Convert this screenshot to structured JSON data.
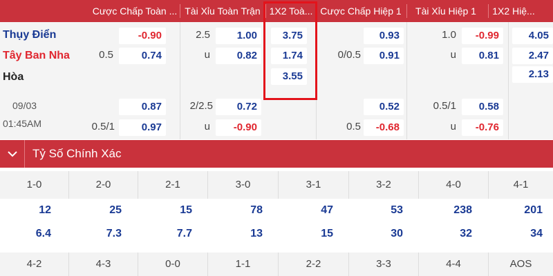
{
  "columns": [
    {
      "label": "Cược Chấp Toàn ..."
    },
    {
      "label": "Tài Xỉu Toàn Trận"
    },
    {
      "label": "1X2 Toà..."
    },
    {
      "label": "Cược Chấp Hiệp 1"
    },
    {
      "label": "Tài Xỉu Hiệp 1"
    },
    {
      "label": "1X2 Hiệ..."
    }
  ],
  "match": {
    "home": "Thụy Điển",
    "away": "Tây Ban Nha",
    "draw": "Hòa",
    "date": "09/03",
    "time": "01:45AM"
  },
  "main_odds": {
    "hc_line": "0.5",
    "hc_home": "-0.90",
    "hc_away": "0.74",
    "ou_line": "2.5",
    "ou_over": "1.00",
    "ou_under_label": "u",
    "ou_under": "0.82",
    "x12_home": "3.75",
    "x12_away": "1.74",
    "x12_draw": "3.55",
    "h1_hc_line": "0/0.5",
    "h1_hc_home": "0.93",
    "h1_hc_away": "0.91",
    "h1_ou_line": "1.0",
    "h1_ou_over": "-0.99",
    "h1_ou_under_label": "u",
    "h1_ou_under": "0.81",
    "h1_x12_home": "4.05",
    "h1_x12_away": "2.47",
    "h1_x12_draw": "2.13"
  },
  "alt_odds": {
    "hc_line": "0.5/1",
    "hc_home": "0.87",
    "hc_away": "0.97",
    "ou_line": "2/2.5",
    "ou_over": "0.72",
    "ou_under_label": "u",
    "ou_under": "-0.90",
    "h1_hc_line": "0.5",
    "h1_hc_home": "0.52",
    "h1_hc_away": "-0.68",
    "h1_ou_line": "0.5/1",
    "h1_ou_over": "0.58",
    "h1_ou_under_label": "u",
    "h1_ou_under": "-0.76"
  },
  "correct_score": {
    "title": "Tỷ Số Chính Xác",
    "row1": [
      {
        "score": "1-0",
        "v1": "12",
        "v2": "6.4"
      },
      {
        "score": "2-0",
        "v1": "25",
        "v2": "7.3"
      },
      {
        "score": "2-1",
        "v1": "15",
        "v2": "7.7"
      },
      {
        "score": "3-0",
        "v1": "78",
        "v2": "13"
      },
      {
        "score": "3-1",
        "v1": "47",
        "v2": "15"
      },
      {
        "score": "3-2",
        "v1": "53",
        "v2": "30"
      },
      {
        "score": "4-0",
        "v1": "238",
        "v2": "32"
      },
      {
        "score": "4-1",
        "v1": "201",
        "v2": "34"
      }
    ],
    "row2": [
      "4-2",
      "4-3",
      "0-0",
      "1-1",
      "2-2",
      "3-3",
      "4-4",
      "AOS"
    ]
  },
  "colors": {
    "header": "#c9323c",
    "highlight": "#e3131b",
    "blue": "#1a3a94",
    "red": "#e0262f"
  }
}
